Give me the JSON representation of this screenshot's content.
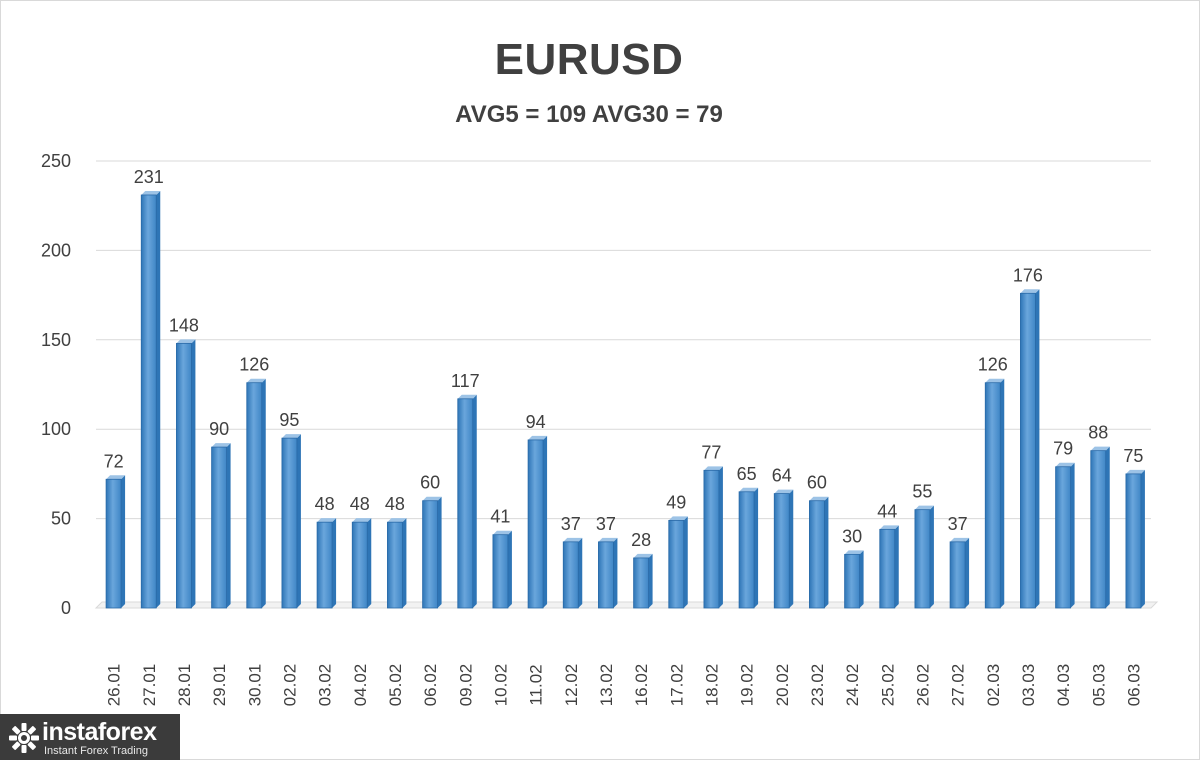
{
  "chart_data": {
    "type": "bar",
    "title": "EURUSD",
    "subtitle": "AVG5 = 109 AVG30 = 79",
    "categories": [
      "26.01",
      "27.01",
      "28.01",
      "29.01",
      "30.01",
      "02.02",
      "03.02",
      "04.02",
      "05.02",
      "06.02",
      "09.02",
      "10.02",
      "11.02",
      "12.02",
      "13.02",
      "16.02",
      "17.02",
      "18.02",
      "19.02",
      "20.02",
      "23.02",
      "24.02",
      "25.02",
      "26.02",
      "27.02",
      "02.03",
      "03.03",
      "04.03",
      "05.03",
      "06.03"
    ],
    "values": [
      72,
      231,
      148,
      90,
      126,
      95,
      48,
      48,
      48,
      60,
      117,
      41,
      94,
      37,
      37,
      28,
      49,
      77,
      65,
      64,
      60,
      30,
      44,
      55,
      37,
      126,
      176,
      79,
      88,
      75
    ],
    "y_ticks": [
      0,
      50,
      100,
      150,
      200,
      250
    ],
    "ylim": [
      0,
      250
    ],
    "grid": true,
    "legend": "none",
    "data_labels": true,
    "bar_color": "#5b9bd5",
    "bar_color_dark": "#2e75b6",
    "bar_color_light": "#9dc3e6",
    "grid_color": "#d9d9d9",
    "text_color": "#404040"
  },
  "logo": {
    "name": "instaforex",
    "tagline": "Instant Forex Trading",
    "icon": "instaforex-logo-icon",
    "background": "#3b3b3b"
  }
}
